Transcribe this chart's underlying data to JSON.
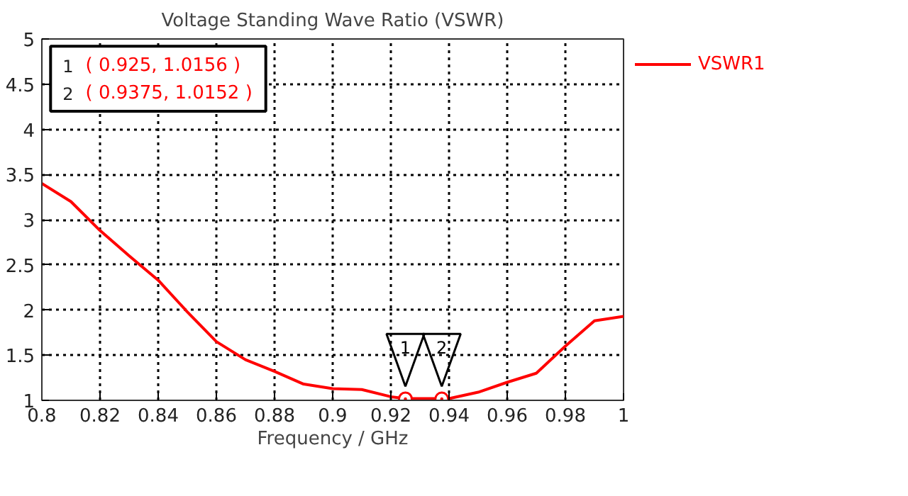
{
  "chart_data": {
    "type": "line",
    "title": "Voltage Standing Wave Ratio (VSWR)",
    "xlabel": "Frequency / GHz",
    "x": [
      0.8,
      0.81,
      0.82,
      0.83,
      0.84,
      0.85,
      0.86,
      0.87,
      0.88,
      0.89,
      0.9,
      0.91,
      0.92,
      0.925,
      0.9375,
      0.94,
      0.95,
      0.96,
      0.97,
      0.98,
      0.99,
      1.0
    ],
    "series": [
      {
        "name": "VSWR1",
        "color": "#ff0000",
        "values": [
          3.4,
          3.2,
          2.88,
          2.6,
          2.33,
          1.98,
          1.65,
          1.45,
          1.32,
          1.18,
          1.13,
          1.12,
          1.04,
          1.02,
          1.02,
          1.02,
          1.09,
          1.2,
          1.3,
          1.6,
          1.88,
          1.93
        ]
      }
    ],
    "xlim": [
      0.8,
      1.0
    ],
    "xticks": [
      0.8,
      0.82,
      0.84,
      0.86,
      0.88,
      0.9,
      0.92,
      0.94,
      0.96,
      0.98,
      {
        "value": 1.0,
        "label": "1"
      }
    ],
    "ylim": [
      1,
      5
    ],
    "yticks": [
      1,
      1.5,
      2,
      2.5,
      3,
      3.5,
      4,
      4.5,
      5
    ],
    "grid": true,
    "legend": "top right",
    "line_style": "solid",
    "marker": "none",
    "annotations": [
      {
        "text": "1",
        "x": 0.925,
        "y": 1.0156
      },
      {
        "text": "2",
        "x": 0.9375,
        "y": 1.0152
      },
      "( 0.925, 1.0156 )",
      "( 0.9375, 1.0152 )"
    ]
  }
}
